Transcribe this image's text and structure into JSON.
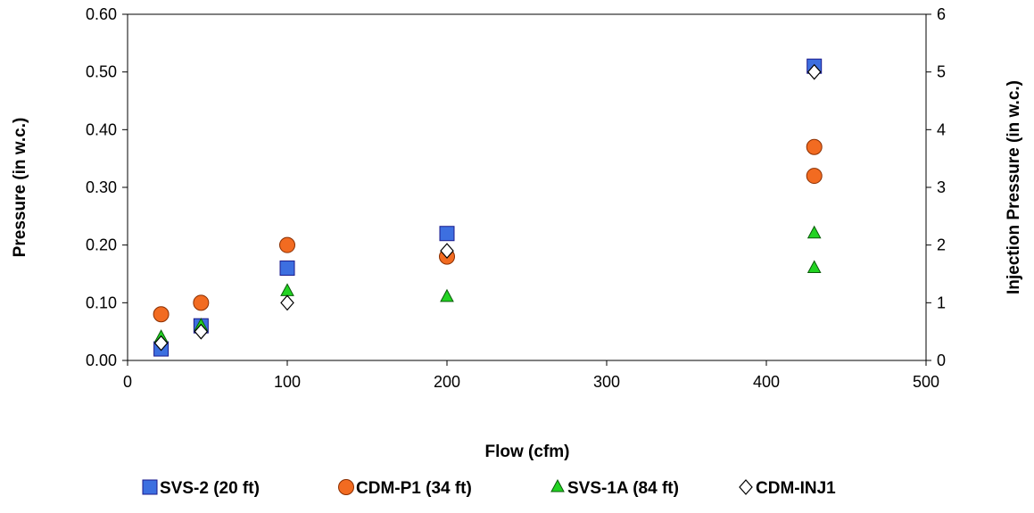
{
  "chart_data": {
    "type": "scatter",
    "xlabel": "Flow (cfm)",
    "ylabel": "Pressure (in w.c.)",
    "y2label": "Injection Pressure (in w.c.)",
    "xlim": [
      0,
      500
    ],
    "ylim": [
      0,
      0.6
    ],
    "y2lim": [
      0,
      6
    ],
    "x_ticks": [
      "0",
      "100",
      "200",
      "300",
      "400",
      "500"
    ],
    "y_ticks": [
      "0.00",
      "0.10",
      "0.20",
      "0.30",
      "0.40",
      "0.50",
      "0.60"
    ],
    "y2_ticks": [
      "0",
      "1",
      "2",
      "3",
      "4",
      "5",
      "6"
    ],
    "grid": false,
    "legend_position": "bottom",
    "series": [
      {
        "name": "SVS-2 (20 ft)",
        "marker": "square",
        "color": "#3d6fe0",
        "axis": "left",
        "points": [
          [
            21,
            0.02
          ],
          [
            46,
            0.06
          ],
          [
            100,
            0.16
          ],
          [
            200,
            0.22
          ],
          [
            430,
            0.51
          ]
        ]
      },
      {
        "name": "CDM-P1 (34 ft)",
        "marker": "circle",
        "color": "#f26b21",
        "axis": "left",
        "points": [
          [
            21,
            0.08
          ],
          [
            46,
            0.1
          ],
          [
            100,
            0.2
          ],
          [
            200,
            0.18
          ],
          [
            430,
            0.37
          ],
          [
            430,
            0.32
          ]
        ]
      },
      {
        "name": "SVS-1A (84 ft)",
        "marker": "triangle",
        "color": "#22d322",
        "axis": "left",
        "points": [
          [
            21,
            0.04
          ],
          [
            46,
            0.06
          ],
          [
            100,
            0.12
          ],
          [
            200,
            0.11
          ],
          [
            430,
            0.22
          ],
          [
            430,
            0.16
          ]
        ]
      },
      {
        "name": "CDM-INJ1",
        "marker": "diamond",
        "color": "#ffffff",
        "axis": "right",
        "points": [
          [
            21,
            0.3
          ],
          [
            46,
            0.5
          ],
          [
            100,
            1.0
          ],
          [
            200,
            1.9
          ],
          [
            430,
            5.0
          ]
        ]
      }
    ]
  }
}
